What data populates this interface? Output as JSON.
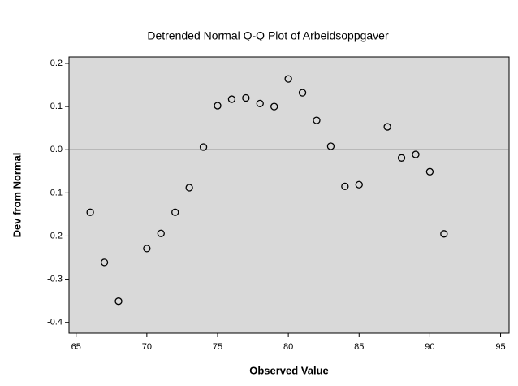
{
  "chart_data": {
    "type": "scatter",
    "title": "Detrended Normal Q-Q Plot of Arbeidsoppgaver",
    "xlabel": "Observed Value",
    "ylabel": "Dev from Normal",
    "x": [
      66,
      67,
      68,
      70,
      71,
      72,
      73,
      74,
      75,
      76,
      77,
      78,
      79,
      80,
      81,
      82,
      83,
      84,
      85,
      87,
      88,
      89,
      90,
      91
    ],
    "values": [
      -0.145,
      -0.261,
      -0.351,
      -0.229,
      -0.194,
      -0.145,
      -0.088,
      0.006,
      0.102,
      0.117,
      0.12,
      0.107,
      0.1,
      0.164,
      0.132,
      0.068,
      0.008,
      -0.085,
      -0.081,
      0.053,
      -0.019,
      -0.011,
      -0.051,
      -0.195
    ],
    "color": "#000000",
    "background": "#d9d9d9",
    "reference_y": 0,
    "xlim": [
      64.5,
      95.6
    ],
    "ylim": [
      -0.425,
      0.215
    ],
    "xticks": [
      65,
      70,
      75,
      80,
      85,
      90,
      95
    ],
    "yticks": [
      0.2,
      0.1,
      {
        "value": 0,
        "label": "0.0"
      },
      -0.1,
      -0.2,
      -0.3,
      -0.4
    ]
  }
}
